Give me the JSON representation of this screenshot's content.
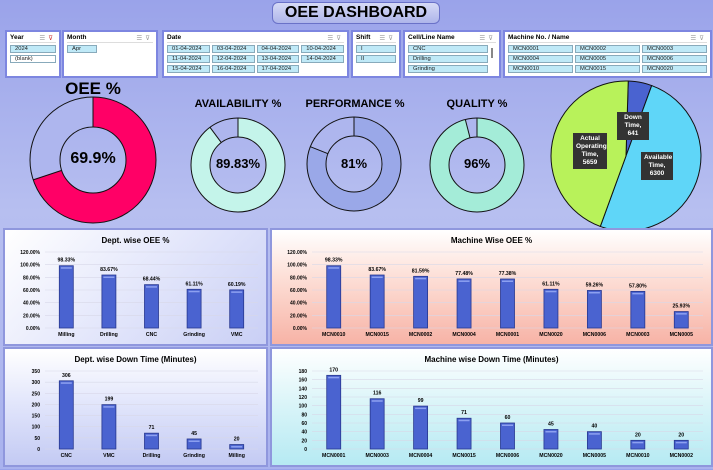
{
  "header": {
    "title": "OEE DASHBOARD"
  },
  "slicers": {
    "year": {
      "label": "Year",
      "items": [
        "2024",
        "(blank)"
      ]
    },
    "month": {
      "label": "Month",
      "items": [
        "Apr"
      ]
    },
    "date": {
      "label": "Date",
      "items": [
        "01-04-2024",
        "03-04-2024",
        "04-04-2024",
        "10-04-2024",
        "11-04-2024",
        "12-04-2024",
        "13-04-2024",
        "14-04-2024",
        "15-04-2024",
        "16-04-2024",
        "17-04-2024"
      ]
    },
    "shift": {
      "label": "Shift",
      "items": [
        "I",
        "II"
      ]
    },
    "cell": {
      "label": "Cell/Line Name",
      "items": [
        "CNC",
        "Drilling",
        "Grinding"
      ]
    },
    "machine": {
      "label": "Machine No. / Name",
      "items": [
        "MCN0001",
        "MCN0002",
        "MCN0003",
        "MCN0004",
        "MCN0005",
        "MCN0006",
        "MCN0010",
        "MCN0015",
        "MCN0020"
      ]
    }
  },
  "kpis": {
    "oee": {
      "label": "OEE %",
      "value": "69.9%",
      "fraction": 0.699,
      "color": "#ff0066"
    },
    "availability": {
      "label": "AVAILABILITY %",
      "value": "89.83%",
      "fraction": 0.8983,
      "color": "#c4f4ea"
    },
    "performance": {
      "label": "PERFORMANCE %",
      "value": "81%",
      "fraction": 0.81,
      "color": "#9aa8e8"
    },
    "quality": {
      "label": "QUALITY %",
      "value": "96%",
      "fraction": 0.96,
      "color": "#a4ecd8"
    }
  },
  "chart_data": [
    {
      "type": "pie",
      "slices": [
        {
          "label": "Down Time, 641",
          "value": 641,
          "color": "#4a63d0"
        },
        {
          "label": "Available Time, 6300",
          "value": 6300,
          "color": "#5fd6f8"
        },
        {
          "label": "Actual Operating Time, 5659",
          "value": 5659,
          "color": "#b8f25a"
        }
      ]
    },
    {
      "type": "bar",
      "title": "Dept. wise OEE %",
      "categories": [
        "Milling",
        "Drilling",
        "CNC",
        "Grinding",
        "VMC"
      ],
      "values": [
        98.33,
        83.67,
        68.44,
        61.11,
        60.19
      ],
      "value_labels": [
        "98.33%",
        "83.67%",
        "68.44%",
        "61.11%",
        "60.19%"
      ],
      "ylim": [
        0,
        120
      ],
      "y_ticks": [
        "0.00%",
        "20.00%",
        "40.00%",
        "60.00%",
        "80.00%",
        "100.00%",
        "120.00%"
      ],
      "grid": true
    },
    {
      "type": "bar",
      "title": "Machine Wise OEE %",
      "categories": [
        "MCN0010",
        "MCN0015",
        "MCN0002",
        "MCN0004",
        "MCN0001",
        "MCN0020",
        "MCN0006",
        "MCN0003",
        "MCN0005"
      ],
      "values": [
        98.33,
        83.67,
        81.59,
        77.48,
        77.38,
        61.11,
        59.26,
        57.8,
        25.93
      ],
      "value_labels": [
        "98.33%",
        "83.67%",
        "81.59%",
        "77.48%",
        "77.38%",
        "61.11%",
        "59.26%",
        "57.80%",
        "25.93%"
      ],
      "ylim": [
        0,
        120
      ],
      "y_ticks": [
        "0.00%",
        "20.00%",
        "40.00%",
        "60.00%",
        "80.00%",
        "100.00%",
        "120.00%"
      ],
      "grid": true
    },
    {
      "type": "bar",
      "title": "Dept. wise Down Time (Minutes)",
      "categories": [
        "CNC",
        "VMC",
        "Drilling",
        "Grinding",
        "Milling"
      ],
      "values": [
        306,
        199,
        71,
        45,
        20
      ],
      "value_labels": [
        "306",
        "199",
        "71",
        "45",
        "20"
      ],
      "ylim": [
        0,
        350
      ],
      "y_ticks": [
        "0",
        "50",
        "100",
        "150",
        "200",
        "250",
        "300",
        "350"
      ],
      "grid": true
    },
    {
      "type": "bar",
      "title": "Machine wise Down Time (Minutes)",
      "categories": [
        "MCN0001",
        "MCN0003",
        "MCN0004",
        "MCN0015",
        "MCN0006",
        "MCN0020",
        "MCN0005",
        "MCN0010",
        "MCN0002"
      ],
      "values": [
        170,
        116,
        99,
        71,
        60,
        45,
        40,
        20,
        20
      ],
      "value_labels": [
        "170",
        "116",
        "99",
        "71",
        "60",
        "45",
        "40",
        "20",
        "20"
      ],
      "ylim": [
        0,
        180
      ],
      "y_ticks": [
        "0",
        "20",
        "40",
        "60",
        "80",
        "100",
        "120",
        "140",
        "160",
        "180"
      ],
      "grid": true
    }
  ]
}
